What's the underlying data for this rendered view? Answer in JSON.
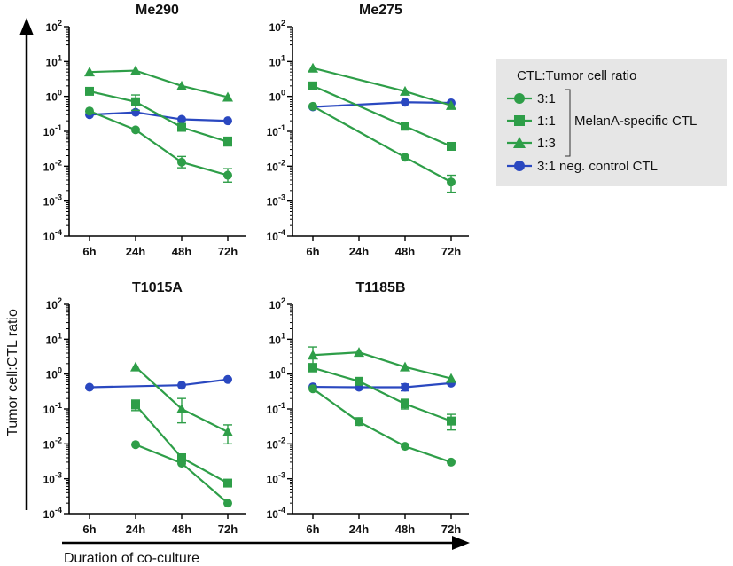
{
  "chart_data": {
    "type": "line",
    "y_scale": "log",
    "ylim": [
      0.0001,
      100
    ],
    "y_ticks": [
      {
        "value": 100,
        "base": "10",
        "exp": "2"
      },
      {
        "value": 10,
        "base": "10",
        "exp": "1"
      },
      {
        "value": 1,
        "base": "10",
        "exp": "0"
      },
      {
        "value": 0.1,
        "base": "10",
        "exp": "-1"
      },
      {
        "value": 0.01,
        "base": "10",
        "exp": "-2"
      },
      {
        "value": 0.001,
        "base": "10",
        "exp": "-3"
      },
      {
        "value": 0.0001,
        "base": "10",
        "exp": "-4"
      }
    ],
    "categories": [
      "6h",
      "24h",
      "48h",
      "72h"
    ],
    "ylabel": "Tumor cell:CTL ratio",
    "xlabel": "Duration of co-culture",
    "colors": {
      "green": "#2e9e48",
      "blue": "#2a48c0"
    },
    "series_defs": [
      {
        "key": "r31",
        "name": "3:1",
        "marker": "circle",
        "color": "#2e9e48"
      },
      {
        "key": "r11",
        "name": "1:1",
        "marker": "square",
        "color": "#2e9e48"
      },
      {
        "key": "r13",
        "name": "1:3",
        "marker": "triangle",
        "color": "#2e9e48"
      },
      {
        "key": "neg",
        "name": "3:1 neg. control CTL",
        "marker": "circle",
        "color": "#2a48c0"
      }
    ],
    "panels": [
      {
        "title": "Me290",
        "series": {
          "r31": [
            {
              "x": 0,
              "y": 0.38
            },
            {
              "x": 1,
              "y": 0.11
            },
            {
              "x": 2,
              "y": 0.013,
              "err": [
                0.009,
                0.019
              ]
            },
            {
              "x": 3,
              "y": 0.0055,
              "err": [
                0.0035,
                0.0085
              ]
            }
          ],
          "r11": [
            {
              "x": 0,
              "y": 1.4
            },
            {
              "x": 1,
              "y": 0.7,
              "err": [
                0.4,
                1.1
              ]
            },
            {
              "x": 2,
              "y": 0.13
            },
            {
              "x": 3,
              "y": 0.05,
              "err": [
                0.038,
                0.068
              ]
            }
          ],
          "r13": [
            {
              "x": 0,
              "y": 5.0
            },
            {
              "x": 1,
              "y": 5.5
            },
            {
              "x": 2,
              "y": 2.0
            },
            {
              "x": 3,
              "y": 0.95
            }
          ],
          "neg": [
            {
              "x": 0,
              "y": 0.3
            },
            {
              "x": 1,
              "y": 0.35
            },
            {
              "x": 2,
              "y": 0.22
            },
            {
              "x": 3,
              "y": 0.2
            }
          ]
        }
      },
      {
        "title": "Me275",
        "series": {
          "r31": [
            {
              "x": 0,
              "y": 0.52
            },
            {
              "x": 2,
              "y": 0.018
            },
            {
              "x": 3,
              "y": 0.0035,
              "err": [
                0.0018,
                0.0055
              ]
            }
          ],
          "r11": [
            {
              "x": 0,
              "y": 2.0
            },
            {
              "x": 2,
              "y": 0.14
            },
            {
              "x": 3,
              "y": 0.037
            }
          ],
          "r13": [
            {
              "x": 0,
              "y": 6.5
            },
            {
              "x": 2,
              "y": 1.4
            },
            {
              "x": 3,
              "y": 0.55
            }
          ],
          "neg": [
            {
              "x": 0,
              "y": 0.5
            },
            {
              "x": 2,
              "y": 0.68
            },
            {
              "x": 3,
              "y": 0.65
            }
          ]
        }
      },
      {
        "title": "T1015A",
        "series": {
          "r31": [
            {
              "x": 1,
              "y": 0.0095
            },
            {
              "x": 2,
              "y": 0.0028
            },
            {
              "x": 3,
              "y": 0.0002
            }
          ],
          "r11": [
            {
              "x": 1,
              "y": 0.13,
              "err": [
                0.09,
                0.18
              ]
            },
            {
              "x": 2,
              "y": 0.004
            },
            {
              "x": 3,
              "y": 0.00075
            }
          ],
          "r13": [
            {
              "x": 1,
              "y": 1.6
            },
            {
              "x": 2,
              "y": 0.1,
              "err": [
                0.04,
                0.2
              ]
            },
            {
              "x": 3,
              "y": 0.022,
              "err": [
                0.01,
                0.035
              ]
            }
          ],
          "neg": [
            {
              "x": 0,
              "y": 0.42
            },
            {
              "x": 2,
              "y": 0.48
            },
            {
              "x": 3,
              "y": 0.7
            }
          ]
        }
      },
      {
        "title": "T1185B",
        "series": {
          "r31": [
            {
              "x": 0,
              "y": 0.38
            },
            {
              "x": 1,
              "y": 0.043,
              "err": [
                0.034,
                0.056
              ]
            },
            {
              "x": 2,
              "y": 0.0085
            },
            {
              "x": 3,
              "y": 0.003
            }
          ],
          "r11": [
            {
              "x": 0,
              "y": 1.5
            },
            {
              "x": 1,
              "y": 0.62
            },
            {
              "x": 2,
              "y": 0.14,
              "err": [
                0.1,
                0.19
              ]
            },
            {
              "x": 3,
              "y": 0.045,
              "err": [
                0.025,
                0.07
              ]
            }
          ],
          "r13": [
            {
              "x": 0,
              "y": 3.5,
              "err": [
                2.0,
                6.0
              ]
            },
            {
              "x": 1,
              "y": 4.2
            },
            {
              "x": 2,
              "y": 1.6
            },
            {
              "x": 3,
              "y": 0.75
            }
          ],
          "neg": [
            {
              "x": 0,
              "y": 0.43
            },
            {
              "x": 1,
              "y": 0.42
            },
            {
              "x": 2,
              "y": 0.42,
              "err": [
                0.33,
                0.52
              ]
            },
            {
              "x": 3,
              "y": 0.55
            }
          ]
        }
      }
    ],
    "legend": {
      "title": "CTL:Tumor cell ratio",
      "entries": [
        "3:1",
        "1:1",
        "1:3",
        "3:1 neg. control CTL"
      ],
      "group_label": "MelanA-specific CTL",
      "placement": "right"
    }
  }
}
